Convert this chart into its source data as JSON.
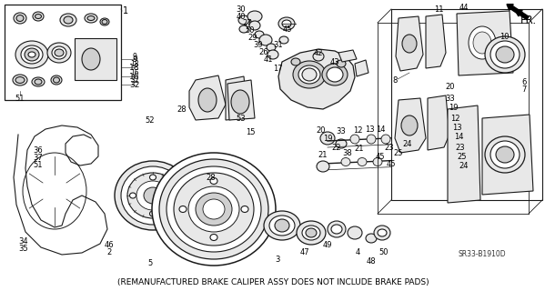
{
  "bg_color": "#f5f5f0",
  "line_color": "#1a1a1a",
  "fill_light": "#e8e8e8",
  "fill_mid": "#d0d0d0",
  "fill_dark": "#b0b0b0",
  "note_text": "(REMANUFACTURED BRAKE CALIPER ASSY DOES NOT INCLUDE BRAKE PADS)",
  "code_text": "SR33-B1910D",
  "fr_text": "FR.",
  "note_fontsize": 6.5,
  "label_fontsize": 6.0,
  "code_fontsize": 5.5,
  "fr_fontsize": 8.5,
  "lw_main": 0.8,
  "lw_thin": 0.5,
  "lw_thick": 1.1
}
